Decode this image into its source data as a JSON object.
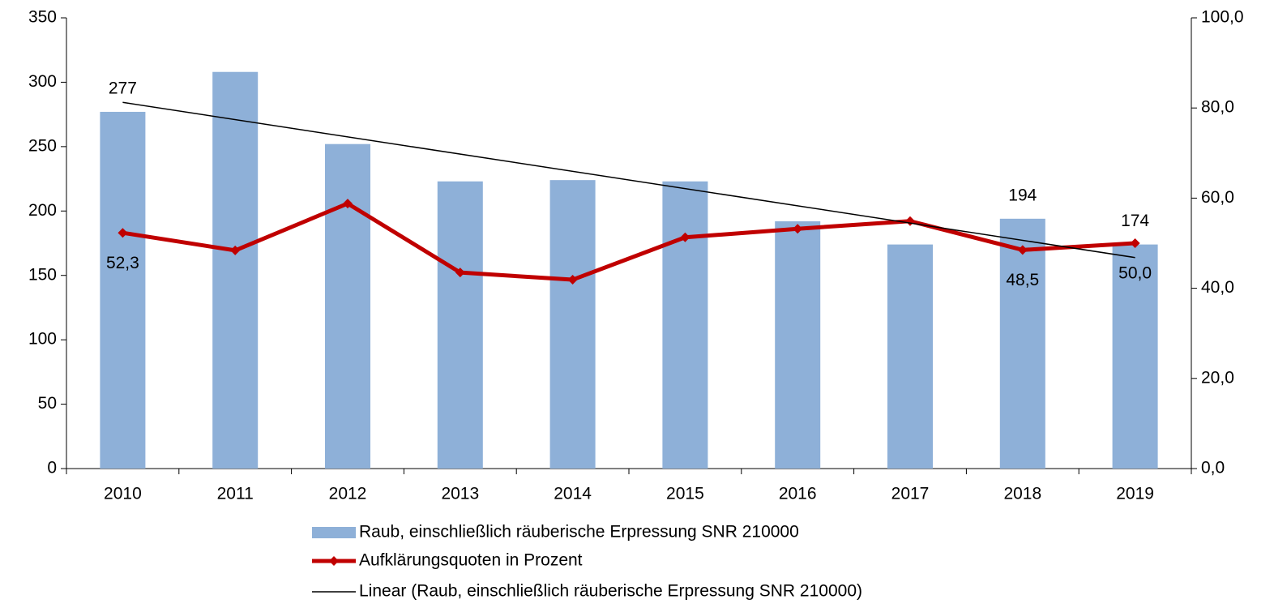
{
  "chart_data": {
    "type": "bar",
    "categories": [
      "2010",
      "2011",
      "2012",
      "2013",
      "2014",
      "2015",
      "2016",
      "2017",
      "2018",
      "2019"
    ],
    "series": [
      {
        "name": "Raub, einschließlich räuberische Erpressung SNR 210000",
        "type": "bar",
        "color": "#8eb0d8",
        "values": [
          277,
          308,
          252,
          223,
          224,
          223,
          192,
          174,
          194,
          174
        ],
        "value_labels": [
          "277",
          null,
          null,
          null,
          null,
          null,
          null,
          null,
          "194",
          "174"
        ]
      },
      {
        "name": "Aufklärungsquoten in Prozent",
        "type": "line",
        "axis": "y2",
        "color": "#c00000",
        "values": [
          52.3,
          48.4,
          58.8,
          43.5,
          41.9,
          51.3,
          53.2,
          54.9,
          48.5,
          50.0
        ],
        "value_labels": [
          "52,3",
          null,
          null,
          null,
          null,
          null,
          null,
          null,
          "48,5",
          "50,0"
        ]
      }
    ],
    "trendline": {
      "name": "Linear (Raub, einschließlich räuberische Erpressung SNR 210000)",
      "type": "linear",
      "series": 0,
      "color": "#000000"
    },
    "ylim": [
      0,
      350
    ],
    "yticks": [
      0,
      50,
      100,
      150,
      200,
      250,
      300,
      350
    ],
    "y2lim": [
      0,
      100
    ],
    "y2ticks": [
      {
        "value": 0,
        "label": "0,0"
      },
      {
        "value": 20,
        "label": "20,0"
      },
      {
        "value": 40,
        "label": "40,0"
      },
      {
        "value": 60,
        "label": "60,0"
      },
      {
        "value": 80,
        "label": "80,0"
      },
      {
        "value": 100,
        "label": "100,0"
      }
    ],
    "grid": false,
    "legend": "bottom"
  }
}
